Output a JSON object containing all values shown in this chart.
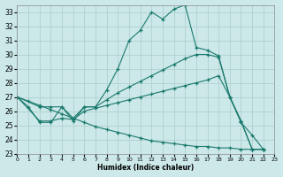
{
  "bg_color": "#cce8e8",
  "grid_color": "#aacccc",
  "line_color": "#1a7a6e",
  "xlabel": "Humidex (Indice chaleur)",
  "xlim": [
    0,
    23
  ],
  "ylim": [
    23,
    33.5
  ],
  "xticks": [
    0,
    1,
    2,
    3,
    4,
    5,
    6,
    7,
    8,
    9,
    10,
    11,
    12,
    13,
    14,
    15,
    16,
    17,
    18,
    19,
    20,
    21,
    22,
    23
  ],
  "yticks": [
    23,
    24,
    25,
    26,
    27,
    28,
    29,
    30,
    31,
    32,
    33
  ],
  "curve1_x": [
    0,
    1,
    2,
    3,
    4,
    5,
    6,
    7,
    8,
    9,
    10,
    11,
    12,
    13,
    14,
    15,
    16,
    17,
    18,
    19,
    20,
    21,
    22
  ],
  "curve1_y": [
    27.0,
    26.3,
    25.2,
    25.2,
    26.3,
    25.3,
    26.3,
    26.3,
    27.5,
    29.0,
    31.0,
    31.7,
    33.0,
    32.5,
    33.2,
    33.5,
    30.5,
    30.3,
    29.9,
    27.0,
    25.2,
    24.3,
    23.3
  ],
  "curve2_x": [
    0,
    2,
    3,
    4,
    5,
    6,
    7,
    8,
    9,
    10,
    11,
    12,
    13,
    14,
    15,
    16,
    17,
    18,
    19,
    20,
    21,
    22
  ],
  "curve2_y": [
    27.0,
    26.3,
    26.3,
    26.3,
    25.5,
    26.3,
    26.3,
    26.8,
    27.3,
    27.7,
    28.1,
    28.5,
    28.9,
    29.3,
    29.7,
    30.0,
    30.0,
    29.8,
    27.0,
    25.3,
    23.3,
    23.3
  ],
  "curve3_x": [
    0,
    2,
    3,
    4,
    5,
    6,
    7,
    8,
    9,
    10,
    11,
    12,
    13,
    14,
    15,
    16,
    17,
    18,
    19,
    20,
    21,
    22
  ],
  "curve3_y": [
    27.0,
    25.3,
    25.3,
    25.5,
    25.4,
    26.0,
    26.2,
    26.4,
    26.6,
    26.8,
    27.0,
    27.2,
    27.4,
    27.6,
    27.8,
    28.0,
    28.2,
    28.5,
    27.0,
    25.3,
    23.3,
    23.3
  ],
  "curve4_x": [
    0,
    1,
    2,
    3,
    4,
    5,
    6,
    7,
    8,
    9,
    10,
    11,
    12,
    13,
    14,
    15,
    16,
    17,
    18,
    19,
    20,
    21,
    22
  ],
  "curve4_y": [
    27.0,
    26.7,
    26.4,
    26.1,
    25.8,
    25.5,
    25.2,
    24.9,
    24.7,
    24.5,
    24.3,
    24.1,
    23.9,
    23.8,
    23.7,
    23.6,
    23.5,
    23.5,
    23.4,
    23.4,
    23.3,
    23.3,
    23.3
  ]
}
